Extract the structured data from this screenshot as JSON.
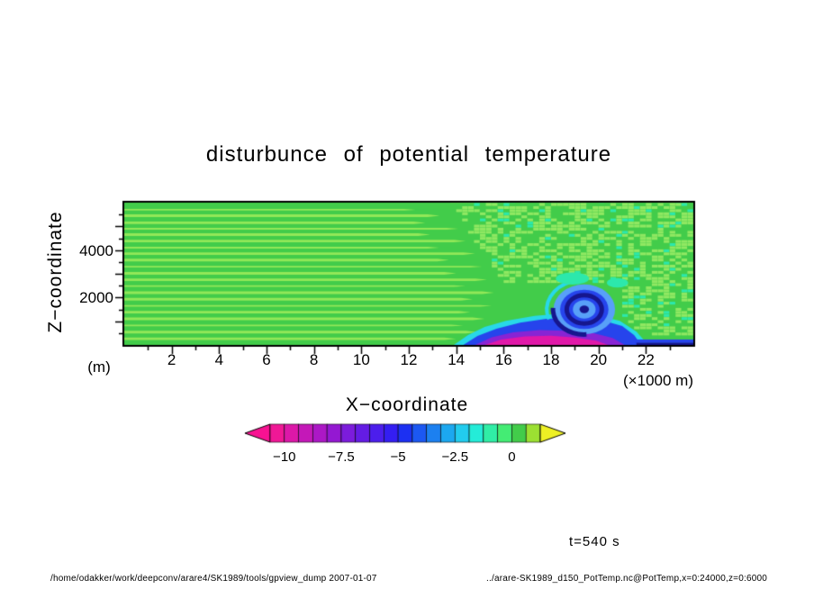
{
  "title": "disturbunce of potential temperature",
  "axes": {
    "x_label": "X−coordinate",
    "x_unit": "(×1000 m)",
    "x_ticks": [
      "2",
      "4",
      "6",
      "8",
      "10",
      "12",
      "14",
      "16",
      "18",
      "20",
      "22"
    ],
    "y_label": "Z−coordinate",
    "y_unit": "(m)",
    "y_ticks": [
      "2000",
      "4000"
    ]
  },
  "time_label": "t=540 s",
  "footer_left": "/home/odakker/work/deepconv/arare4/SK1989/tools/gpview_dump  2007-01-07",
  "footer_right": "../arare-SK1989_d150_PotTemp.nc@PotTemp,x=0:24000,z=0:6000",
  "chart_data": {
    "type": "heatmap",
    "title": "disturbunce of potential temperature",
    "variable": "potential temperature disturbance (K)",
    "time_s": 540,
    "xlabel": "X-coordinate (x1000 m)",
    "ylabel": "Z-coordinate (m)",
    "x_range_m": [
      0,
      24000
    ],
    "z_range_m": [
      0,
      6000
    ],
    "x_ticks_km": [
      2,
      4,
      6,
      8,
      10,
      12,
      14,
      16,
      18,
      20,
      22
    ],
    "z_ticks_m": [
      2000,
      4000
    ],
    "colorbar": {
      "tick_values": [
        -10,
        -7.5,
        -5,
        -2.5,
        0
      ],
      "tick_labels": [
        "−10",
        "−7.5",
        "−5",
        "−2.5",
        "0"
      ],
      "segment_min": -10.625,
      "segment_step": 0.625,
      "colors": [
        "#f01896",
        "#dc18a8",
        "#c418b8",
        "#ac18c6",
        "#9418d2",
        "#7c1cdc",
        "#641ce4",
        "#4c1eec",
        "#341ef2",
        "#1c30f2",
        "#1c58f2",
        "#1c80f0",
        "#1ca8f0",
        "#22ccee",
        "#24ecd8",
        "#30eea6",
        "#44ec74",
        "#42cc4a",
        "#9ce032"
      ],
      "under_color": "#f81292",
      "over_color": "#eef024"
    },
    "field": {
      "description": "Mostly near-zero disturbance (green). Horizontal light-green wave streaks on left half ending near x=11-15 km. Speckled numerical-noise pattern in upper-right quadrant. Cold-pool density current at bottom right (x=14-22 km) with magenta core (~-10 K), purple and blue layers, cyan fringe, and a blue rotor vortex centered near x=19.4 km, z=1500 m. Thin blue outflow layer along the ground from x=21.6 to 24 km.",
      "background_value": 0,
      "background_color": "#42cc4a",
      "streak_color": "#92e858",
      "streaks": [
        [
          5700,
          11.8
        ],
        [
          5450,
          12.8
        ],
        [
          5150,
          12.2
        ],
        [
          4900,
          13.6
        ],
        [
          4650,
          12.4
        ],
        [
          4380,
          13.9
        ],
        [
          4100,
          12.8
        ],
        [
          3850,
          14.3
        ],
        [
          3580,
          13.2
        ],
        [
          3300,
          14.6
        ],
        [
          3020,
          13.5
        ],
        [
          2750,
          14.8
        ],
        [
          2480,
          13.9
        ],
        [
          2200,
          15.1
        ],
        [
          1930,
          14.2
        ],
        [
          1650,
          15.0
        ],
        [
          1380,
          14.1
        ],
        [
          1100,
          14.7
        ],
        [
          820,
          13.8
        ],
        [
          540,
          14.4
        ],
        [
          260,
          13.5
        ]
      ],
      "speckle": {
        "light": "#90e862",
        "cyan": "#2ce8ac",
        "cell_km": 0.25,
        "cell_m": 130,
        "regions": [
          {
            "kind": "diag",
            "z_min": 2500,
            "x_at_top": 13.6,
            "dz_per_km": 1500
          },
          {
            "kind": "rect",
            "x_min": 20.9,
            "z_min": 600
          },
          {
            "kind": "rect",
            "x_min": 22.2,
            "z_min": 300
          }
        ]
      },
      "cold_pool_polygons": [
        {
          "name": "cyan-fringe",
          "color": "#28d8e8",
          "pts": [
            [
              13.9,
              0
            ],
            [
              14.5,
              420
            ],
            [
              15.2,
              760
            ],
            [
              16.1,
              1020
            ],
            [
              17.3,
              1220
            ],
            [
              18.5,
              1330
            ],
            [
              19.8,
              1280
            ],
            [
              20.9,
              1020
            ],
            [
              21.6,
              560
            ],
            [
              22.1,
              0
            ]
          ]
        },
        {
          "name": "blue-layer",
          "color": "#2644ec",
          "pts": [
            [
              14.3,
              0
            ],
            [
              14.9,
              380
            ],
            [
              15.7,
              680
            ],
            [
              16.7,
              940
            ],
            [
              17.8,
              1100
            ],
            [
              19.0,
              1150
            ],
            [
              20.1,
              1050
            ],
            [
              21.0,
              800
            ],
            [
              21.5,
              420
            ],
            [
              21.8,
              0
            ]
          ]
        },
        {
          "name": "purple-layer",
          "color": "#8824d4",
          "pts": [
            [
              14.8,
              0
            ],
            [
              15.5,
              320
            ],
            [
              16.4,
              530
            ],
            [
              17.5,
              630
            ],
            [
              18.7,
              600
            ],
            [
              19.8,
              490
            ],
            [
              20.6,
              290
            ],
            [
              21.1,
              0
            ]
          ]
        },
        {
          "name": "magenta-core",
          "color": "#e018a8",
          "pts": [
            [
              15.2,
              0
            ],
            [
              15.9,
              230
            ],
            [
              16.9,
              360
            ],
            [
              18.0,
              385
            ],
            [
              19.0,
              315
            ],
            [
              19.9,
              185
            ],
            [
              20.4,
              0
            ]
          ]
        }
      ],
      "vortex": {
        "cx_km": 19.4,
        "cz_m": 1500,
        "layers": [
          {
            "rx": 1.3,
            "rz": 1050,
            "color": "#58a0f8",
            "fill": true
          },
          {
            "rx": 1.02,
            "rz": 830,
            "color": "#2644ec",
            "fill": true
          },
          {
            "rx": 0.74,
            "rz": 600,
            "color": "#16168e",
            "fill": false,
            "lw": 5
          },
          {
            "rx": 0.48,
            "rz": 390,
            "color": "#58a0f8",
            "fill": true
          },
          {
            "rx": 0.2,
            "rz": 160,
            "color": "#16168e",
            "fill": true
          }
        ],
        "arms": [
          {
            "rx": 1.32,
            "rz": 1060,
            "a0": 1.5,
            "a1": 3.2,
            "color": "#16168e",
            "lw": 5
          },
          {
            "rx": 1.58,
            "rz": 1250,
            "a0": 2.8,
            "a1": 4.6,
            "color": "#28d8e8",
            "lw": 4
          }
        ]
      },
      "cyan_patches": [
        {
          "cx": 18.9,
          "cz": 2800,
          "rx": 0.7,
          "rz": 260,
          "color": "#2ce8ac"
        },
        {
          "cx": 20.8,
          "cz": 2620,
          "rx": 0.45,
          "rz": 200,
          "color": "#2ce8ac"
        }
      ],
      "bottom_bands": [
        {
          "x0": 21.6,
          "x1": 24,
          "z0": 80,
          "z1": 230,
          "color": "#2644ec"
        },
        {
          "x0": 21.6,
          "x1": 24,
          "z0": 0,
          "z1": 90,
          "color": "#16168e"
        }
      ]
    }
  }
}
